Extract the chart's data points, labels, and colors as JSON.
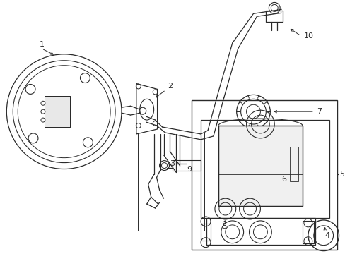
{
  "background_color": "#ffffff",
  "line_color": "#2a2a2a",
  "text_color": "#2a2a2a",
  "fig_width": 4.89,
  "fig_height": 3.6,
  "dpi": 100
}
